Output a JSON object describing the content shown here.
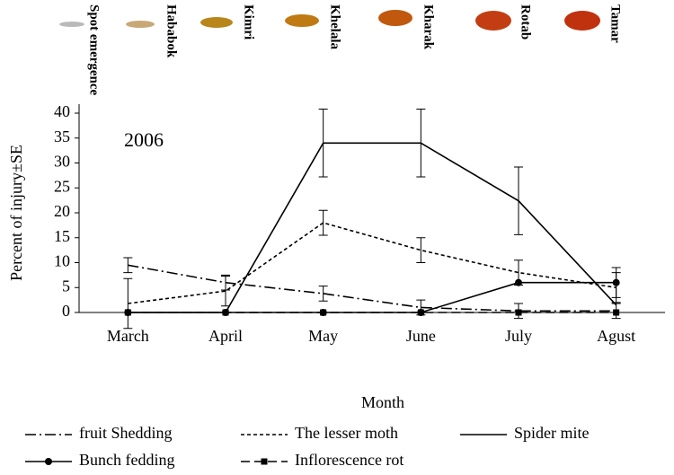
{
  "stages": [
    "Spot emergence",
    "Hababok",
    "Kimri",
    "Khelala",
    "Kharak",
    "Rotab",
    "Tamar"
  ],
  "chart_data": {
    "type": "line",
    "annotation": "2006",
    "y_label": "Percent of injury±SE",
    "x_label": "Month",
    "categories": [
      "March",
      "April",
      "May",
      "June",
      "July",
      "Agust"
    ],
    "ylim": [
      0,
      40
    ],
    "yticks": [
      0,
      5,
      10,
      15,
      20,
      25,
      30,
      35,
      40
    ],
    "series": [
      {
        "name": "fruit Shedding",
        "color": "#000000",
        "dash": "12 4 2 4",
        "marker": null,
        "values": [
          9.5,
          6,
          3.8,
          1,
          0.3,
          0.3
        ],
        "errors": [
          1.5,
          1.5,
          1.5,
          1.5,
          1.5,
          1.5
        ]
      },
      {
        "name": "The lesser moth",
        "color": "#000000",
        "dash": "4 3",
        "marker": null,
        "values": [
          1.8,
          4.3,
          18,
          12.5,
          8,
          5
        ],
        "errors": [
          5,
          3,
          2.5,
          2.5,
          2.5,
          3
        ]
      },
      {
        "name": "Spider mite",
        "color": "#000000",
        "dash": null,
        "marker": null,
        "values": [
          0,
          0,
          34,
          34,
          22.4,
          1.5
        ],
        "errors": [
          0,
          0,
          6.8,
          6.8,
          6.8,
          0
        ]
      },
      {
        "name": "Bunch fedding",
        "color": "#000000",
        "dash": null,
        "marker": "circle",
        "values": [
          0,
          0,
          0,
          0,
          6,
          6
        ],
        "errors": [
          0,
          0,
          0,
          0,
          0,
          3
        ]
      },
      {
        "name": "Inflorescence rot",
        "color": "#000000",
        "dash": "10 5",
        "marker": "square",
        "values": [
          0,
          0,
          0,
          0,
          0,
          0
        ],
        "errors": [
          0,
          0,
          0,
          0,
          0,
          0
        ]
      }
    ]
  }
}
